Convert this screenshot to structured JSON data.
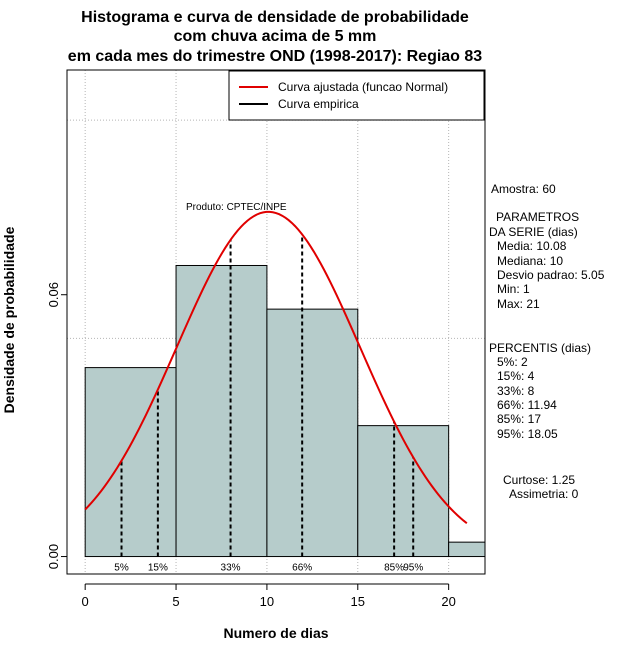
{
  "chart_data": {
    "type": "histogram",
    "title_lines": [
      "Histograma e curva de densidade de probabilidade",
      "com chuva acima de 5 mm",
      "em cada mes do trimestre OND (1998-2017): Regiao 83"
    ],
    "xlabel": "Numero de dias",
    "ylabel": "Densidade de probabilidade",
    "xlim": [
      -1,
      22
    ],
    "ylim": [
      -0.004,
      0.1115
    ],
    "x_ticks": [
      0,
      5,
      10,
      15,
      20
    ],
    "y_ticks": [
      0.0,
      0.06
    ],
    "y_tick_labels": [
      "0.00",
      "0.06"
    ],
    "bins": [
      {
        "x0": 0,
        "x1": 5,
        "density": 0.0433
      },
      {
        "x0": 5,
        "x1": 10,
        "density": 0.0667
      },
      {
        "x0": 10,
        "x1": 15,
        "density": 0.0567
      },
      {
        "x0": 15,
        "x1": 20,
        "density": 0.03
      },
      {
        "x0": 20,
        "x1": 22,
        "density": 0.0033
      }
    ],
    "normal_fit": {
      "mean": 10.08,
      "sd": 5.05,
      "x_from": 0,
      "x_to": 21
    },
    "percentiles": [
      {
        "label": "5%",
        "value": 2
      },
      {
        "label": "15%",
        "value": 4
      },
      {
        "label": "33%",
        "value": 8
      },
      {
        "label": "66%",
        "value": 11.94
      },
      {
        "label": "85%",
        "value": 17
      },
      {
        "label": "95%",
        "value": 18.05
      }
    ],
    "grid": true,
    "grid_x": [
      0,
      5,
      10,
      15,
      20
    ],
    "grid_y": [
      0.05,
      0.1
    ],
    "legend": {
      "position": "top-right",
      "entries": [
        {
          "label": "Curva ajustada (funcao Normal)",
          "color": "#e00000"
        },
        {
          "label": "Curva empirica",
          "color": "#000000"
        }
      ]
    },
    "annotation": "Produto: CPTEC/INPE",
    "colors": {
      "bar_fill": "#b6cccb",
      "curve": "#e00000"
    }
  },
  "side_panel": {
    "amostra": "Amostra: 60",
    "parametros_title_1": "PARAMETROS",
    "parametros_title_2": "DA SERIE (dias)",
    "media": "Media: 10.08",
    "mediana": "Mediana: 10",
    "desvio": "Desvio padrao: 5.05",
    "min": "Min: 1",
    "max": "Max: 21",
    "percentis_title": "PERCENTIS (dias)",
    "p5": "5%: 2",
    "p15": "15%: 4",
    "p33": "33%: 8",
    "p66": "66%: 11.94",
    "p85": "85%: 17",
    "p95": "95%: 18.05",
    "curtose": "Curtose: 1.25",
    "assimetria": "Assimetria: 0"
  }
}
